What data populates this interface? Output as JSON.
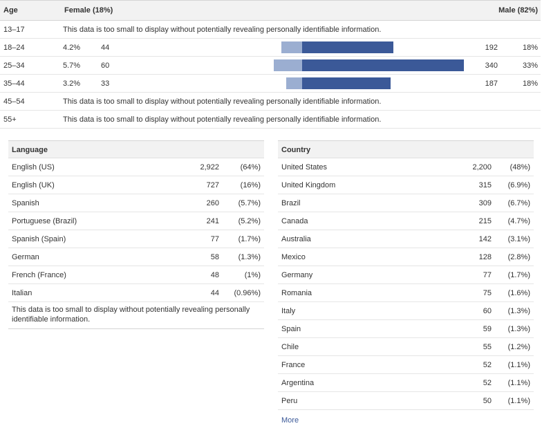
{
  "age": {
    "header": {
      "age": "Age",
      "female": "Female (18%)",
      "male": "Male (82%)"
    },
    "rows": [
      {
        "range": "13–17",
        "note": "This data is too small to display without potentially revealing personally identifiable information."
      },
      {
        "range": "18–24",
        "female_pct": "4.2%",
        "female_count": "44",
        "male_count": "192",
        "male_pct": "18%",
        "female_value": 44,
        "male_value": 192
      },
      {
        "range": "25–34",
        "female_pct": "5.7%",
        "female_count": "60",
        "male_count": "340",
        "male_pct": "33%",
        "female_value": 60,
        "male_value": 340
      },
      {
        "range": "35–44",
        "female_pct": "3.2%",
        "female_count": "33",
        "male_count": "187",
        "male_pct": "18%",
        "female_value": 33,
        "male_value": 187
      },
      {
        "range": "45–54",
        "note": "This data is too small to display without potentially revealing personally identifiable information."
      },
      {
        "range": "55+",
        "note": "This data is too small to display without potentially revealing personally identifiable information."
      }
    ],
    "colors": {
      "female_bar": "#9baed1",
      "male_bar": "#3b5998"
    }
  },
  "language": {
    "title": "Language",
    "rows": [
      {
        "name": "English (US)",
        "count": "2,922",
        "pct": "(64%)"
      },
      {
        "name": "English (UK)",
        "count": "727",
        "pct": "(16%)"
      },
      {
        "name": "Spanish",
        "count": "260",
        "pct": "(5.7%)"
      },
      {
        "name": "Portuguese (Brazil)",
        "count": "241",
        "pct": "(5.2%)"
      },
      {
        "name": "Spanish (Spain)",
        "count": "77",
        "pct": "(1.7%)"
      },
      {
        "name": "German",
        "count": "58",
        "pct": "(1.3%)"
      },
      {
        "name": "French (France)",
        "count": "48",
        "pct": "(1%)"
      },
      {
        "name": "Italian",
        "count": "44",
        "pct": "(0.96%)"
      }
    ],
    "note": "This data is too small to display without potentially revealing personally identifiable information."
  },
  "country": {
    "title": "Country",
    "rows": [
      {
        "name": "United States",
        "count": "2,200",
        "pct": "(48%)"
      },
      {
        "name": "United Kingdom",
        "count": "315",
        "pct": "(6.9%)"
      },
      {
        "name": "Brazil",
        "count": "309",
        "pct": "(6.7%)"
      },
      {
        "name": "Canada",
        "count": "215",
        "pct": "(4.7%)"
      },
      {
        "name": "Australia",
        "count": "142",
        "pct": "(3.1%)"
      },
      {
        "name": "Mexico",
        "count": "128",
        "pct": "(2.8%)"
      },
      {
        "name": "Germany",
        "count": "77",
        "pct": "(1.7%)"
      },
      {
        "name": "Romania",
        "count": "75",
        "pct": "(1.6%)"
      },
      {
        "name": "Italy",
        "count": "60",
        "pct": "(1.3%)"
      },
      {
        "name": "Spain",
        "count": "59",
        "pct": "(1.3%)"
      },
      {
        "name": "Chile",
        "count": "55",
        "pct": "(1.2%)"
      },
      {
        "name": "France",
        "count": "52",
        "pct": "(1.1%)"
      },
      {
        "name": "Argentina",
        "count": "52",
        "pct": "(1.1%)"
      },
      {
        "name": "Peru",
        "count": "50",
        "pct": "(1.1%)"
      }
    ],
    "more_label": "More"
  }
}
